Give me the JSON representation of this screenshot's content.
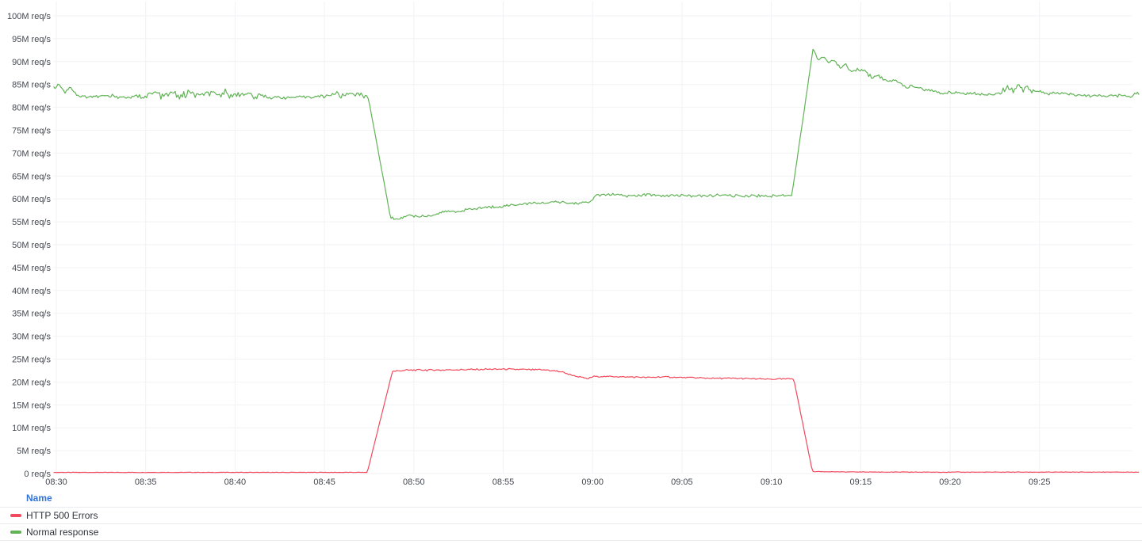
{
  "colors": {
    "grid": "#f1f2f4",
    "axis_text": "#44484f",
    "legend_header_blue": "#3274d9",
    "legend_text": "#2f343b"
  },
  "legend": {
    "header": "Name",
    "items": [
      {
        "label": "HTTP 500 Errors",
        "color": "#f2495c"
      },
      {
        "label": "Normal response",
        "color": "#61b356"
      }
    ]
  },
  "chart_data": {
    "type": "line",
    "title": "",
    "xlabel": "",
    "ylabel": "req/s",
    "grid": true,
    "legend_position": "bottom-table",
    "x_domain_minutes_from_0830": [
      -0.15,
      60.6
    ],
    "ylim": [
      0,
      100
    ],
    "y_ticks": [
      {
        "value": 0,
        "label": "0 req/s"
      },
      {
        "value": 5,
        "label": "5M req/s"
      },
      {
        "value": 10,
        "label": "10M req/s"
      },
      {
        "value": 15,
        "label": "15M req/s"
      },
      {
        "value": 20,
        "label": "20M req/s"
      },
      {
        "value": 25,
        "label": "25M req/s"
      },
      {
        "value": 30,
        "label": "30M req/s"
      },
      {
        "value": 35,
        "label": "35M req/s"
      },
      {
        "value": 40,
        "label": "40M req/s"
      },
      {
        "value": 45,
        "label": "45M req/s"
      },
      {
        "value": 50,
        "label": "50M req/s"
      },
      {
        "value": 55,
        "label": "55M req/s"
      },
      {
        "value": 60,
        "label": "60M req/s"
      },
      {
        "value": 65,
        "label": "65M req/s"
      },
      {
        "value": 70,
        "label": "70M req/s"
      },
      {
        "value": 75,
        "label": "75M req/s"
      },
      {
        "value": 80,
        "label": "80M req/s"
      },
      {
        "value": 85,
        "label": "85M req/s"
      },
      {
        "value": 90,
        "label": "90M req/s"
      },
      {
        "value": 95,
        "label": "95M req/s"
      },
      {
        "value": 100,
        "label": "100M req/s"
      }
    ],
    "x_ticks": [
      {
        "minute": 0,
        "label": "08:30"
      },
      {
        "minute": 5,
        "label": "08:35"
      },
      {
        "minute": 10,
        "label": "08:40"
      },
      {
        "minute": 15,
        "label": "08:45"
      },
      {
        "minute": 20,
        "label": "08:50"
      },
      {
        "minute": 25,
        "label": "08:55"
      },
      {
        "minute": 30,
        "label": "09:00"
      },
      {
        "minute": 35,
        "label": "09:05"
      },
      {
        "minute": 40,
        "label": "09:10"
      },
      {
        "minute": 45,
        "label": "09:15"
      },
      {
        "minute": 50,
        "label": "09:20"
      },
      {
        "minute": 55,
        "label": "09:25"
      }
    ],
    "series": [
      {
        "name": "HTTP 500 Errors",
        "color": "#f2495c",
        "unit": "M req/s",
        "points": [
          [
            -0.15,
            0.25
          ],
          [
            17.4,
            0.25
          ],
          [
            18.8,
            22.3
          ],
          [
            19.5,
            22.6
          ],
          [
            21,
            22.6
          ],
          [
            23,
            22.7
          ],
          [
            25,
            22.8
          ],
          [
            26.5,
            22.7
          ],
          [
            27.5,
            22.6
          ],
          [
            28.3,
            22.2
          ],
          [
            28.8,
            21.5
          ],
          [
            29.4,
            21.0
          ],
          [
            29.7,
            20.7
          ],
          [
            30.1,
            21.2
          ],
          [
            31,
            21.2
          ],
          [
            32,
            21.1
          ],
          [
            33,
            21.0
          ],
          [
            34,
            21.1
          ],
          [
            35,
            21.0
          ],
          [
            36,
            20.9
          ],
          [
            37,
            20.8
          ],
          [
            38,
            20.8
          ],
          [
            39,
            20.7
          ],
          [
            40,
            20.6
          ],
          [
            41.25,
            20.7
          ],
          [
            42.3,
            0.45
          ],
          [
            44,
            0.35
          ],
          [
            48,
            0.3
          ],
          [
            52,
            0.3
          ],
          [
            56,
            0.3
          ],
          [
            60.6,
            0.3
          ]
        ],
        "noise_segments": [
          [
            -0.15,
            17.4,
            0.05
          ],
          [
            17.4,
            18.8,
            0.1
          ],
          [
            18.8,
            28.3,
            0.22
          ],
          [
            28.3,
            41.25,
            0.18
          ],
          [
            41.25,
            42.3,
            0.08
          ],
          [
            42.3,
            60.6,
            0.07
          ]
        ]
      },
      {
        "name": "Normal response",
        "color": "#61b356",
        "unit": "M req/s",
        "points": [
          [
            -0.15,
            84.2
          ],
          [
            0.2,
            85.2
          ],
          [
            0.5,
            83.2
          ],
          [
            0.8,
            84.6
          ],
          [
            1.2,
            82.4
          ],
          [
            2,
            82.3
          ],
          [
            3,
            82.5
          ],
          [
            4,
            82.2
          ],
          [
            5,
            82.4
          ],
          [
            5.5,
            83.1
          ],
          [
            6,
            82.3
          ],
          [
            6.5,
            83.3
          ],
          [
            7,
            82.4
          ],
          [
            7.5,
            83.4
          ],
          [
            8,
            82.4
          ],
          [
            8.5,
            83.1
          ],
          [
            9,
            82.3
          ],
          [
            9.5,
            83.3
          ],
          [
            10,
            82.4
          ],
          [
            10.5,
            83.2
          ],
          [
            11,
            82.2
          ],
          [
            11.5,
            82.5
          ],
          [
            12,
            82.2
          ],
          [
            13,
            82.1
          ],
          [
            14,
            82.3
          ],
          [
            15,
            82.4
          ],
          [
            15.7,
            83.1
          ],
          [
            16,
            82.4
          ],
          [
            16.4,
            83.2
          ],
          [
            17,
            82.6
          ],
          [
            17.45,
            82.3
          ],
          [
            18.7,
            55.8
          ],
          [
            19.3,
            55.7
          ],
          [
            19.6,
            56.5
          ],
          [
            20.2,
            56.2
          ],
          [
            21,
            56.4
          ],
          [
            21.8,
            57.3
          ],
          [
            22.4,
            57.2
          ],
          [
            23,
            57.7
          ],
          [
            24,
            58.1
          ],
          [
            25,
            58.4
          ],
          [
            26,
            58.9
          ],
          [
            27,
            59.1
          ],
          [
            28,
            59.3
          ],
          [
            29,
            59.0
          ],
          [
            29.9,
            59.3
          ],
          [
            30.15,
            60.7
          ],
          [
            31,
            61.0
          ],
          [
            32,
            60.6
          ],
          [
            33,
            60.9
          ],
          [
            34,
            60.7
          ],
          [
            35,
            60.8
          ],
          [
            36,
            60.6
          ],
          [
            37,
            60.8
          ],
          [
            38,
            60.6
          ],
          [
            39,
            60.7
          ],
          [
            40,
            60.6
          ],
          [
            41.15,
            60.9
          ],
          [
            42.35,
            93.2
          ],
          [
            42.6,
            90.3
          ],
          [
            42.9,
            91.2
          ],
          [
            43.2,
            89.9
          ],
          [
            43.5,
            90.4
          ],
          [
            43.8,
            88.8
          ],
          [
            44.1,
            89.4
          ],
          [
            44.5,
            87.6
          ],
          [
            44.8,
            88.3
          ],
          [
            45.2,
            88.0
          ],
          [
            45.6,
            86.6
          ],
          [
            46,
            86.9
          ],
          [
            46.5,
            85.6
          ],
          [
            47,
            85.9
          ],
          [
            47.5,
            84.4
          ],
          [
            48,
            84.6
          ],
          [
            48.5,
            83.9
          ],
          [
            49,
            83.6
          ],
          [
            49.5,
            83.0
          ],
          [
            50,
            83.3
          ],
          [
            51,
            83.1
          ],
          [
            52,
            82.9
          ],
          [
            52.8,
            83.1
          ],
          [
            53.2,
            84.7
          ],
          [
            53.5,
            83.3
          ],
          [
            53.8,
            84.9
          ],
          [
            54.1,
            83.5
          ],
          [
            54.4,
            84.6
          ],
          [
            54.7,
            83.2
          ],
          [
            55,
            83.7
          ],
          [
            55.5,
            82.9
          ],
          [
            56,
            83.1
          ],
          [
            57,
            82.7
          ],
          [
            58,
            82.5
          ],
          [
            59,
            82.4
          ],
          [
            59.6,
            82.7
          ],
          [
            60.1,
            82.3
          ],
          [
            60.45,
            83.3
          ],
          [
            60.6,
            82.9
          ]
        ],
        "noise_segments": [
          [
            -0.15,
            5,
            0.55
          ],
          [
            5,
            11.5,
            1.0
          ],
          [
            11.5,
            15.4,
            0.45
          ],
          [
            15.4,
            17.45,
            0.7
          ],
          [
            17.45,
            18.7,
            0.15
          ],
          [
            18.7,
            41.15,
            0.35
          ],
          [
            41.15,
            42.35,
            0.2
          ],
          [
            42.35,
            46,
            0.5
          ],
          [
            46,
            52.7,
            0.4
          ],
          [
            52.7,
            54.8,
            0.9
          ],
          [
            54.8,
            60.6,
            0.4
          ]
        ]
      }
    ]
  }
}
